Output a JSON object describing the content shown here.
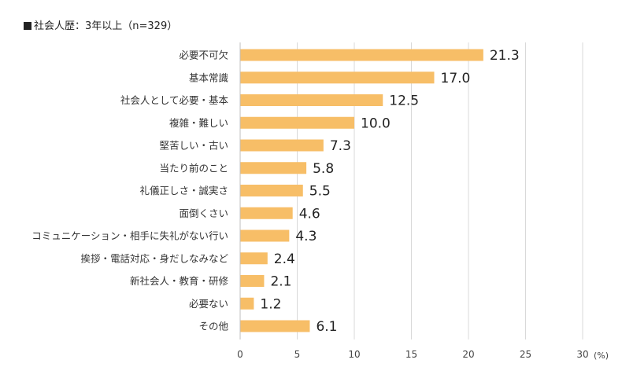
{
  "chart_data": {
    "type": "bar",
    "orientation": "horizontal",
    "title": "社会人歴：3年以上（n=329）",
    "categories": [
      "必要不可欠",
      "基本常識",
      "社会人として必要・基本",
      "複雑・難しい",
      "堅苦しい・古い",
      "当たり前のこと",
      "礼儀正しさ・誠実さ",
      "面倒くさい",
      "コミュニケーション・相手に失礼がない行い",
      "挨拶・電話対応・身だしなみなど",
      "新社会人・教育・研修",
      "必要ない",
      "その他"
    ],
    "values": [
      21.3,
      17.0,
      12.5,
      10.0,
      7.3,
      5.8,
      5.5,
      4.6,
      4.3,
      2.4,
      2.1,
      1.2,
      6.1
    ],
    "value_labels": [
      "21.3",
      "17.0",
      "12.5",
      "10.0",
      "7.3",
      "5.8",
      "5.5",
      "4.6",
      "4.3",
      "2.4",
      "2.1",
      "1.2",
      "6.1"
    ],
    "xlim": [
      0,
      30
    ],
    "xticks": [
      "0",
      "5",
      "10",
      "15",
      "20",
      "25",
      "30"
    ],
    "xlabel": "(%)",
    "ylabel": "",
    "grid": true,
    "bar_color": "#F7BE67",
    "grid_color": "#D9D9D9"
  }
}
